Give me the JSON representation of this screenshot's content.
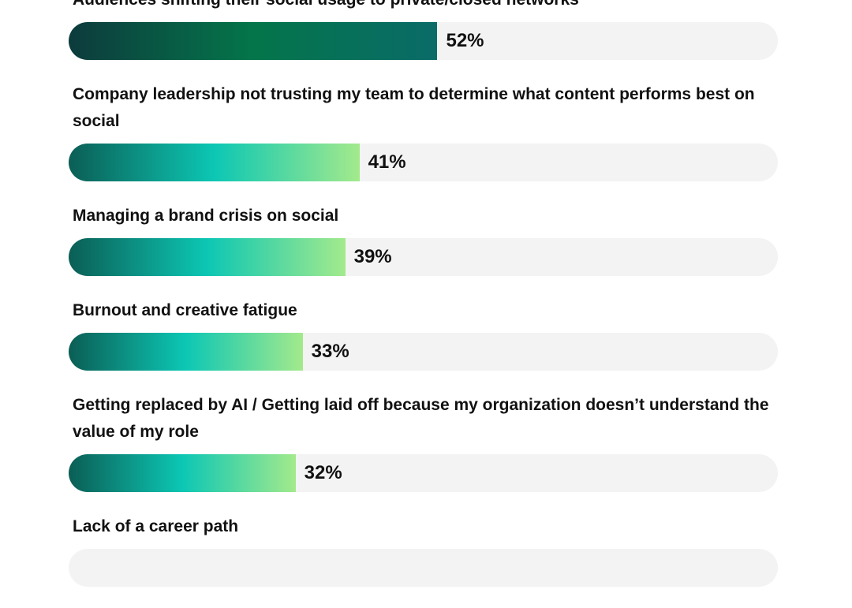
{
  "chart_data": {
    "type": "bar",
    "orientation": "horizontal",
    "categories": [
      "Audiences shifting their social usage to private/closed networks",
      "Company leadership not trusting my team to determine what content performs best on social",
      "Managing a brand crisis on social",
      "Burnout and creative fatigue",
      "Getting replaced by AI / Getting laid off because my organization doesn’t understand the value of my role",
      "Lack of a career path"
    ],
    "values": [
      52,
      41,
      39,
      33,
      32,
      null
    ],
    "value_labels": [
      "52%",
      "41%",
      "39%",
      "33%",
      "32%",
      null
    ],
    "colors": [
      [
        "#0d3b3d",
        "#04754a",
        "#0a6b68"
      ],
      [
        "#0b5e55",
        "#0cc7b4",
        "#a3ea8c"
      ],
      [
        "#0b5e55",
        "#0cc7b4",
        "#a3ea8c"
      ],
      [
        "#0b5e55",
        "#0cc7b4",
        "#a3ea8c"
      ],
      [
        "#0b5e55",
        "#0cc7b4",
        "#a3ea8c"
      ],
      [
        "#0b5e55",
        "#0cc7b4",
        "#a3ea8c"
      ]
    ],
    "track_color": "#f3f3f3",
    "xlim": [
      0,
      100
    ]
  }
}
